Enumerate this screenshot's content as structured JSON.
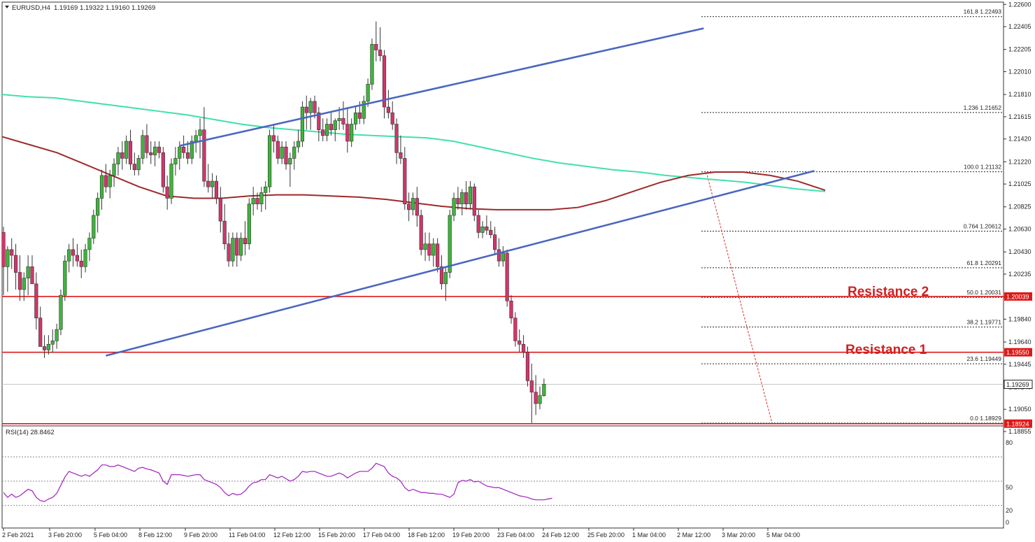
{
  "header": {
    "symbol": "EURUSD,H4",
    "ohlc": "1.19169 1.19322 1.19160 1.19269"
  },
  "rsi_panel": {
    "label": "RSI(14) 28.8462",
    "levels": [
      "80",
      "50",
      "20",
      "0"
    ]
  },
  "annotations": {
    "resistance_2": "Resistance 2",
    "resistance_1": "Resistance 1"
  },
  "colors": {
    "bull": "#3fb43c",
    "bear": "#d2356c",
    "ma_long": "#40e0b0",
    "ma_short": "#9e2a2b",
    "channel": "#4a66c0",
    "levels": "#e01818",
    "rsi": "#a020c0",
    "fib": "#222222"
  },
  "chart_data": [
    {
      "type": "candlestick",
      "symbol": "EURUSD",
      "timeframe": "H4",
      "price_axis_ticks": [
        "1.22600",
        "1.22405",
        "1.22205",
        "1.22010",
        "1.21810",
        "1.21615",
        "1.21420",
        "1.21220",
        "1.21025",
        "1.20825",
        "1.20630",
        "1.20430",
        "1.20235",
        "1.20035",
        "1.19840",
        "1.19640",
        "1.19445",
        "1.19245",
        "1.19050",
        "1.18855"
      ],
      "ylim": [
        1.188,
        1.2262
      ],
      "time_axis_ticks": [
        "2 Feb 2021",
        "3 Feb 20:00",
        "5 Feb 04:00",
        "8 Feb 12:00",
        "9 Feb 20:00",
        "11 Feb 04:00",
        "12 Feb 12:00",
        "15 Feb 20:00",
        "17 Feb 04:00",
        "18 Feb 12:00",
        "19 Feb 20:00",
        "23 Feb 04:00",
        "24 Feb 12:00",
        "25 Feb 20:00",
        "1 Mar 04:00",
        "2 Mar 12:00",
        "3 Mar 20:00",
        "5 Mar 04:00"
      ],
      "ohlc": [
        [
          1.206,
          1.2065,
          1.2005,
          1.203
        ],
        [
          1.203,
          1.2048,
          1.2008,
          1.2045
        ],
        [
          1.2045,
          1.2055,
          1.2028,
          1.204
        ],
        [
          1.204,
          1.205,
          1.201,
          1.2025
        ],
        [
          1.2025,
          1.204,
          1.2,
          1.201
        ],
        [
          1.201,
          1.2025,
          1.2,
          1.202
        ],
        [
          1.202,
          1.204,
          1.2005,
          1.203
        ],
        [
          1.203,
          1.204,
          1.2015,
          1.2015
        ],
        [
          1.2015,
          1.2025,
          1.1975,
          1.1985
        ],
        [
          1.1985,
          1.1995,
          1.196,
          1.196
        ],
        [
          1.196,
          1.197,
          1.195,
          1.1957
        ],
        [
          1.1957,
          1.197,
          1.1953,
          1.1962
        ],
        [
          1.1962,
          1.1975,
          1.1955,
          1.1965
        ],
        [
          1.1965,
          1.198,
          1.1958,
          1.1975
        ],
        [
          1.1975,
          1.201,
          1.197,
          1.2005
        ],
        [
          1.2005,
          1.204,
          1.2,
          1.2035
        ],
        [
          1.2035,
          1.205,
          1.2025,
          1.2045
        ],
        [
          1.2045,
          1.2055,
          1.203,
          1.204
        ],
        [
          1.204,
          1.205,
          1.203,
          1.2035
        ],
        [
          1.2035,
          1.2045,
          1.202,
          1.203
        ],
        [
          1.203,
          1.205,
          1.2025,
          1.2045
        ],
        [
          1.2045,
          1.206,
          1.2035,
          1.2055
        ],
        [
          1.2055,
          1.208,
          1.205,
          1.2075
        ],
        [
          1.2075,
          1.2095,
          1.206,
          1.209
        ],
        [
          1.209,
          1.2115,
          1.208,
          1.211
        ],
        [
          1.211,
          1.212,
          1.2095,
          1.21
        ],
        [
          1.21,
          1.2115,
          1.209,
          1.211
        ],
        [
          1.211,
          1.2125,
          1.21,
          1.212
        ],
        [
          1.212,
          1.2135,
          1.211,
          1.213
        ],
        [
          1.213,
          1.214,
          1.2115,
          1.2125
        ],
        [
          1.2125,
          1.2145,
          1.212,
          1.214
        ],
        [
          1.214,
          1.215,
          1.2115,
          1.212
        ],
        [
          1.212,
          1.213,
          1.211,
          1.2115
        ],
        [
          1.2115,
          1.2128,
          1.211,
          1.2125
        ],
        [
          1.2125,
          1.215,
          1.212,
          1.2145
        ],
        [
          1.2145,
          1.2155,
          1.2125,
          1.213
        ],
        [
          1.213,
          1.214,
          1.212,
          1.2128
        ],
        [
          1.2128,
          1.214,
          1.2118,
          1.2135
        ],
        [
          1.2135,
          1.214,
          1.2125,
          1.213
        ],
        [
          1.213,
          1.2135,
          1.2095,
          1.21
        ],
        [
          1.21,
          1.211,
          1.208,
          1.209
        ],
        [
          1.209,
          1.2125,
          1.2085,
          1.212
        ],
        [
          1.212,
          1.2135,
          1.211,
          1.2125
        ],
        [
          1.2125,
          1.214,
          1.2115,
          1.2135
        ],
        [
          1.2135,
          1.2145,
          1.2125,
          1.213
        ],
        [
          1.213,
          1.214,
          1.212,
          1.2125
        ],
        [
          1.2125,
          1.2145,
          1.212,
          1.214
        ],
        [
          1.214,
          1.215,
          1.213,
          1.2145
        ],
        [
          1.2145,
          1.216,
          1.2125,
          1.215
        ],
        [
          1.215,
          1.217,
          1.21,
          1.2105
        ],
        [
          1.2105,
          1.212,
          1.2095,
          1.21
        ],
        [
          1.21,
          1.2112,
          1.209,
          1.2105
        ],
        [
          1.2105,
          1.211,
          1.2085,
          1.209
        ],
        [
          1.209,
          1.21,
          1.206,
          1.207
        ],
        [
          1.207,
          1.2085,
          1.2045,
          1.205
        ],
        [
          1.205,
          1.206,
          1.203,
          1.2035
        ],
        [
          1.2035,
          1.206,
          1.203,
          1.2055
        ],
        [
          1.2055,
          1.206,
          1.203,
          1.204
        ],
        [
          1.204,
          1.206,
          1.2035,
          1.2055
        ],
        [
          1.2055,
          1.207,
          1.204,
          1.205
        ],
        [
          1.205,
          1.209,
          1.2045,
          1.2085
        ],
        [
          1.2085,
          1.21,
          1.2075,
          1.209
        ],
        [
          1.209,
          1.2095,
          1.208,
          1.2085
        ],
        [
          1.2085,
          1.21,
          1.2078,
          1.2095
        ],
        [
          1.2095,
          1.2105,
          1.208,
          1.21
        ],
        [
          1.21,
          1.215,
          1.2095,
          1.2145
        ],
        [
          1.2145,
          1.2155,
          1.213,
          1.214
        ],
        [
          1.214,
          1.2145,
          1.212,
          1.2125
        ],
        [
          1.2125,
          1.214,
          1.212,
          1.2135
        ],
        [
          1.2135,
          1.214,
          1.2115,
          1.212
        ],
        [
          1.212,
          1.213,
          1.21,
          1.2125
        ],
        [
          1.2125,
          1.214,
          1.2115,
          1.2135
        ],
        [
          1.2135,
          1.215,
          1.213,
          1.214
        ],
        [
          1.214,
          1.2175,
          1.2135,
          1.217
        ],
        [
          1.217,
          1.218,
          1.215,
          1.2165
        ],
        [
          1.2165,
          1.2178,
          1.215,
          1.2175
        ],
        [
          1.2175,
          1.218,
          1.216,
          1.2165
        ],
        [
          1.2165,
          1.217,
          1.214,
          1.215
        ],
        [
          1.215,
          1.216,
          1.214,
          1.2145
        ],
        [
          1.2145,
          1.216,
          1.214,
          1.2155
        ],
        [
          1.2155,
          1.2165,
          1.2145,
          1.215
        ],
        [
          1.215,
          1.216,
          1.214,
          1.2158
        ],
        [
          1.2158,
          1.217,
          1.215,
          1.216
        ],
        [
          1.216,
          1.2175,
          1.215,
          1.2155
        ],
        [
          1.2155,
          1.217,
          1.213,
          1.214
        ],
        [
          1.214,
          1.216,
          1.2135,
          1.2155
        ],
        [
          1.2155,
          1.217,
          1.215,
          1.2165
        ],
        [
          1.2165,
          1.2175,
          1.2155,
          1.216
        ],
        [
          1.216,
          1.218,
          1.2155,
          1.2175
        ],
        [
          1.2175,
          1.2195,
          1.217,
          1.219
        ],
        [
          1.219,
          1.223,
          1.2185,
          1.2225
        ],
        [
          1.2225,
          1.2245,
          1.221,
          1.222
        ],
        [
          1.222,
          1.224,
          1.221,
          1.2215
        ],
        [
          1.2215,
          1.222,
          1.216,
          1.217
        ],
        [
          1.217,
          1.2185,
          1.216,
          1.2165
        ],
        [
          1.2165,
          1.2175,
          1.215,
          1.2155
        ],
        [
          1.2155,
          1.216,
          1.212,
          1.213
        ],
        [
          1.213,
          1.2145,
          1.212,
          1.2125
        ],
        [
          1.2125,
          1.2135,
          1.208,
          1.2085
        ],
        [
          1.2085,
          1.2095,
          1.207,
          1.208
        ],
        [
          1.208,
          1.2095,
          1.2075,
          1.209
        ],
        [
          1.209,
          1.21,
          1.2065,
          1.2075
        ],
        [
          1.2075,
          1.208,
          1.204,
          1.2045
        ],
        [
          1.2045,
          1.206,
          1.2035,
          1.205
        ],
        [
          1.205,
          1.206,
          1.2035,
          1.204
        ],
        [
          1.204,
          1.2055,
          1.203,
          1.205
        ],
        [
          1.205,
          1.2055,
          1.2025,
          1.203
        ],
        [
          1.203,
          1.204,
          1.201,
          1.2015
        ],
        [
          1.2015,
          1.203,
          1.2,
          1.2025
        ],
        [
          1.2025,
          1.208,
          1.202,
          1.2075
        ],
        [
          1.2075,
          1.2095,
          1.207,
          1.209
        ],
        [
          1.209,
          1.21,
          1.208,
          1.2085
        ],
        [
          1.2085,
          1.2098,
          1.2075,
          1.2095
        ],
        [
          1.2095,
          1.2105,
          1.208,
          1.2085
        ],
        [
          1.2085,
          1.2105,
          1.208,
          1.21
        ],
        [
          1.21,
          1.2103,
          1.207,
          1.2075
        ],
        [
          1.2075,
          1.208,
          1.2055,
          1.206
        ],
        [
          1.206,
          1.207,
          1.2055,
          1.2065
        ],
        [
          1.2065,
          1.2075,
          1.2058,
          1.2062
        ],
        [
          1.2062,
          1.207,
          1.2055,
          1.2058
        ],
        [
          1.2058,
          1.2065,
          1.204,
          1.2045
        ],
        [
          1.2045,
          1.2055,
          1.203,
          1.2035
        ],
        [
          1.2035,
          1.2048,
          1.203,
          1.2042
        ],
        [
          1.2042,
          1.2045,
          1.1995,
          1.2
        ],
        [
          1.2,
          1.2005,
          1.198,
          1.1985
        ],
        [
          1.1985,
          1.199,
          1.196,
          1.1965
        ],
        [
          1.1965,
          1.1975,
          1.1955,
          1.1962
        ],
        [
          1.1962,
          1.197,
          1.195,
          1.1955
        ],
        [
          1.1955,
          1.196,
          1.1925,
          1.193
        ],
        [
          1.193,
          1.1945,
          1.1893,
          1.192
        ],
        [
          1.192,
          1.1935,
          1.19,
          1.191
        ],
        [
          1.191,
          1.1925,
          1.1905,
          1.1917
        ],
        [
          1.1917,
          1.1932,
          1.1916,
          1.1927
        ]
      ],
      "moving_averages": [
        {
          "color": "#40e0b0",
          "values": [
            1.2181,
            1.2179,
            1.2178,
            1.2175,
            1.2172,
            1.2169,
            1.2166,
            1.2163,
            1.2159,
            1.2155,
            1.2152,
            1.215,
            1.2148,
            1.2146,
            1.2145,
            1.2144,
            1.2143,
            1.214,
            1.2135,
            1.213,
            1.2125,
            1.2121,
            1.2118,
            1.2115,
            1.2113,
            1.211,
            1.2108,
            1.2106,
            1.2104,
            1.2101,
            1.2098,
            1.2096
          ]
        },
        {
          "color": "#9e2a2b",
          "values": [
            1.2144,
            1.2137,
            1.213,
            1.212,
            1.211,
            1.21,
            1.2092,
            1.209,
            1.209,
            1.2092,
            1.2093,
            1.2093,
            1.2092,
            1.2091,
            1.2089,
            1.2086,
            1.2083,
            1.2081,
            1.208,
            1.208,
            1.208,
            1.2082,
            1.2088,
            1.2096,
            1.2104,
            1.211,
            1.2113,
            1.2113,
            1.211,
            1.2105,
            1.2097
          ]
        }
      ],
      "channel_lines": [
        {
          "from": {
            "bar": 43,
            "price": 1.2136
          },
          "to": {
            "bar": 171,
            "price": 1.2239
          }
        },
        {
          "from": {
            "bar": 25,
            "price": 1.1952
          },
          "to": {
            "bar": 198,
            "price": 1.2114
          }
        }
      ],
      "horizontal_levels": [
        {
          "price": 1.20039,
          "label": "1.20039"
        },
        {
          "price": 1.1955,
          "label": "1.19550"
        },
        {
          "price": 1.18924,
          "label": "1.18924"
        }
      ],
      "current_price": "1.19269",
      "fibonacci": [
        {
          "level": "161.8",
          "price": 1.22493,
          "label": "161.8 1.22493"
        },
        {
          "level": "1.236",
          "price": 1.21652,
          "label": "1.236 1.21652"
        },
        {
          "level": "100.0",
          "price": 1.21132,
          "label": "100.0 1.21132"
        },
        {
          "level": "0.764",
          "price": 1.20612,
          "label": "0.764 1.20612"
        },
        {
          "level": "61.8",
          "price": 1.20291,
          "label": "61.8 1.20291"
        },
        {
          "level": "50.0",
          "price": 1.20031,
          "label": "50.0 1.20031"
        },
        {
          "level": "38.2",
          "price": 1.19771,
          "label": "38.2 1.19771"
        },
        {
          "level": "23.6",
          "price": 1.19449,
          "label": "23.6 1.19449"
        },
        {
          "level": "0.0",
          "price": 1.18929,
          "label": "0.0 1.18929"
        }
      ]
    },
    {
      "type": "line",
      "title": "RSI(14) 28.8462",
      "ylim": [
        0,
        100
      ],
      "levels": [
        80,
        50,
        20
      ],
      "values": [
        36,
        30,
        34,
        30,
        32,
        36,
        40,
        38,
        30,
        26,
        25,
        28,
        30,
        35,
        45,
        55,
        62,
        60,
        58,
        56,
        58,
        56,
        60,
        64,
        70,
        70,
        68,
        68,
        70,
        68,
        66,
        64,
        62,
        66,
        67,
        65,
        64,
        62,
        60,
        50,
        46,
        58,
        58,
        58,
        57,
        56,
        57,
        58,
        58,
        52,
        50,
        48,
        46,
        42,
        36,
        32,
        35,
        33,
        34,
        38,
        44,
        48,
        49,
        52,
        52,
        58,
        56,
        54,
        56,
        53,
        50,
        52,
        56,
        62,
        61,
        62,
        62,
        60,
        58,
        56,
        56,
        58,
        60,
        58,
        54,
        57,
        60,
        62,
        62,
        62,
        66,
        72,
        70,
        68,
        60,
        56,
        54,
        50,
        42,
        38,
        40,
        38,
        36,
        36,
        35,
        35,
        34,
        34,
        32,
        30,
        34,
        48,
        51,
        50,
        52,
        49,
        50,
        47,
        44,
        43,
        42,
        42,
        40,
        38,
        36,
        34,
        32,
        31,
        30,
        28,
        27,
        27,
        27,
        28,
        29
      ]
    }
  ]
}
